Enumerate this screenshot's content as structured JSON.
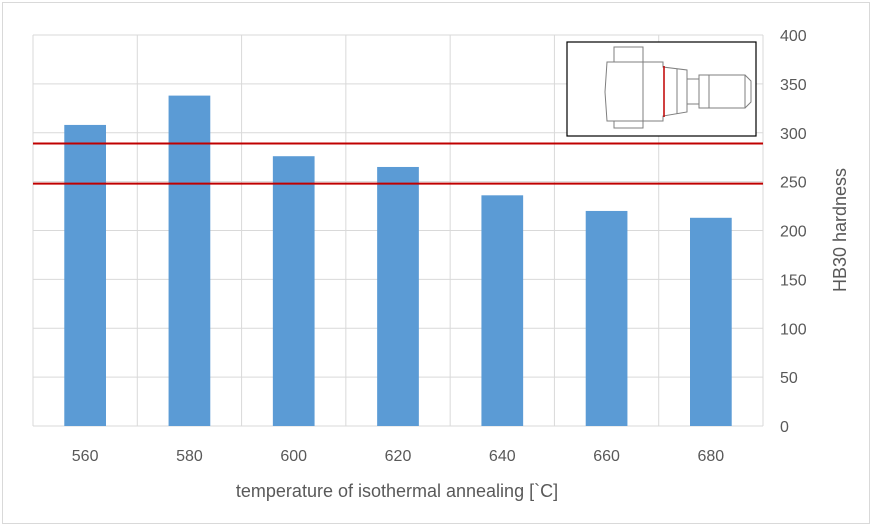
{
  "chart_data": {
    "type": "bar",
    "categories": [
      "560",
      "580",
      "600",
      "620",
      "640",
      "660",
      "680"
    ],
    "series": [
      {
        "values": [
          308,
          338,
          276,
          265,
          236,
          220,
          213
        ]
      }
    ],
    "bar_color": "#5b9bd5",
    "xlabel": "temperature of isothermal annealing [`C]",
    "ylabel": "HB30 hardness",
    "ylim": [
      0,
      400
    ],
    "y_ticks": [
      0,
      50,
      100,
      150,
      200,
      250,
      300,
      350,
      400
    ],
    "y_axis_side": "right",
    "grid": true,
    "reference_lines": [
      {
        "y": 289,
        "color": "#c00000"
      },
      {
        "y": 248,
        "color": "#c00000"
      }
    ],
    "inset": {
      "content": "part drawing",
      "marker_color": "#c00000",
      "placement": "top-right"
    }
  }
}
